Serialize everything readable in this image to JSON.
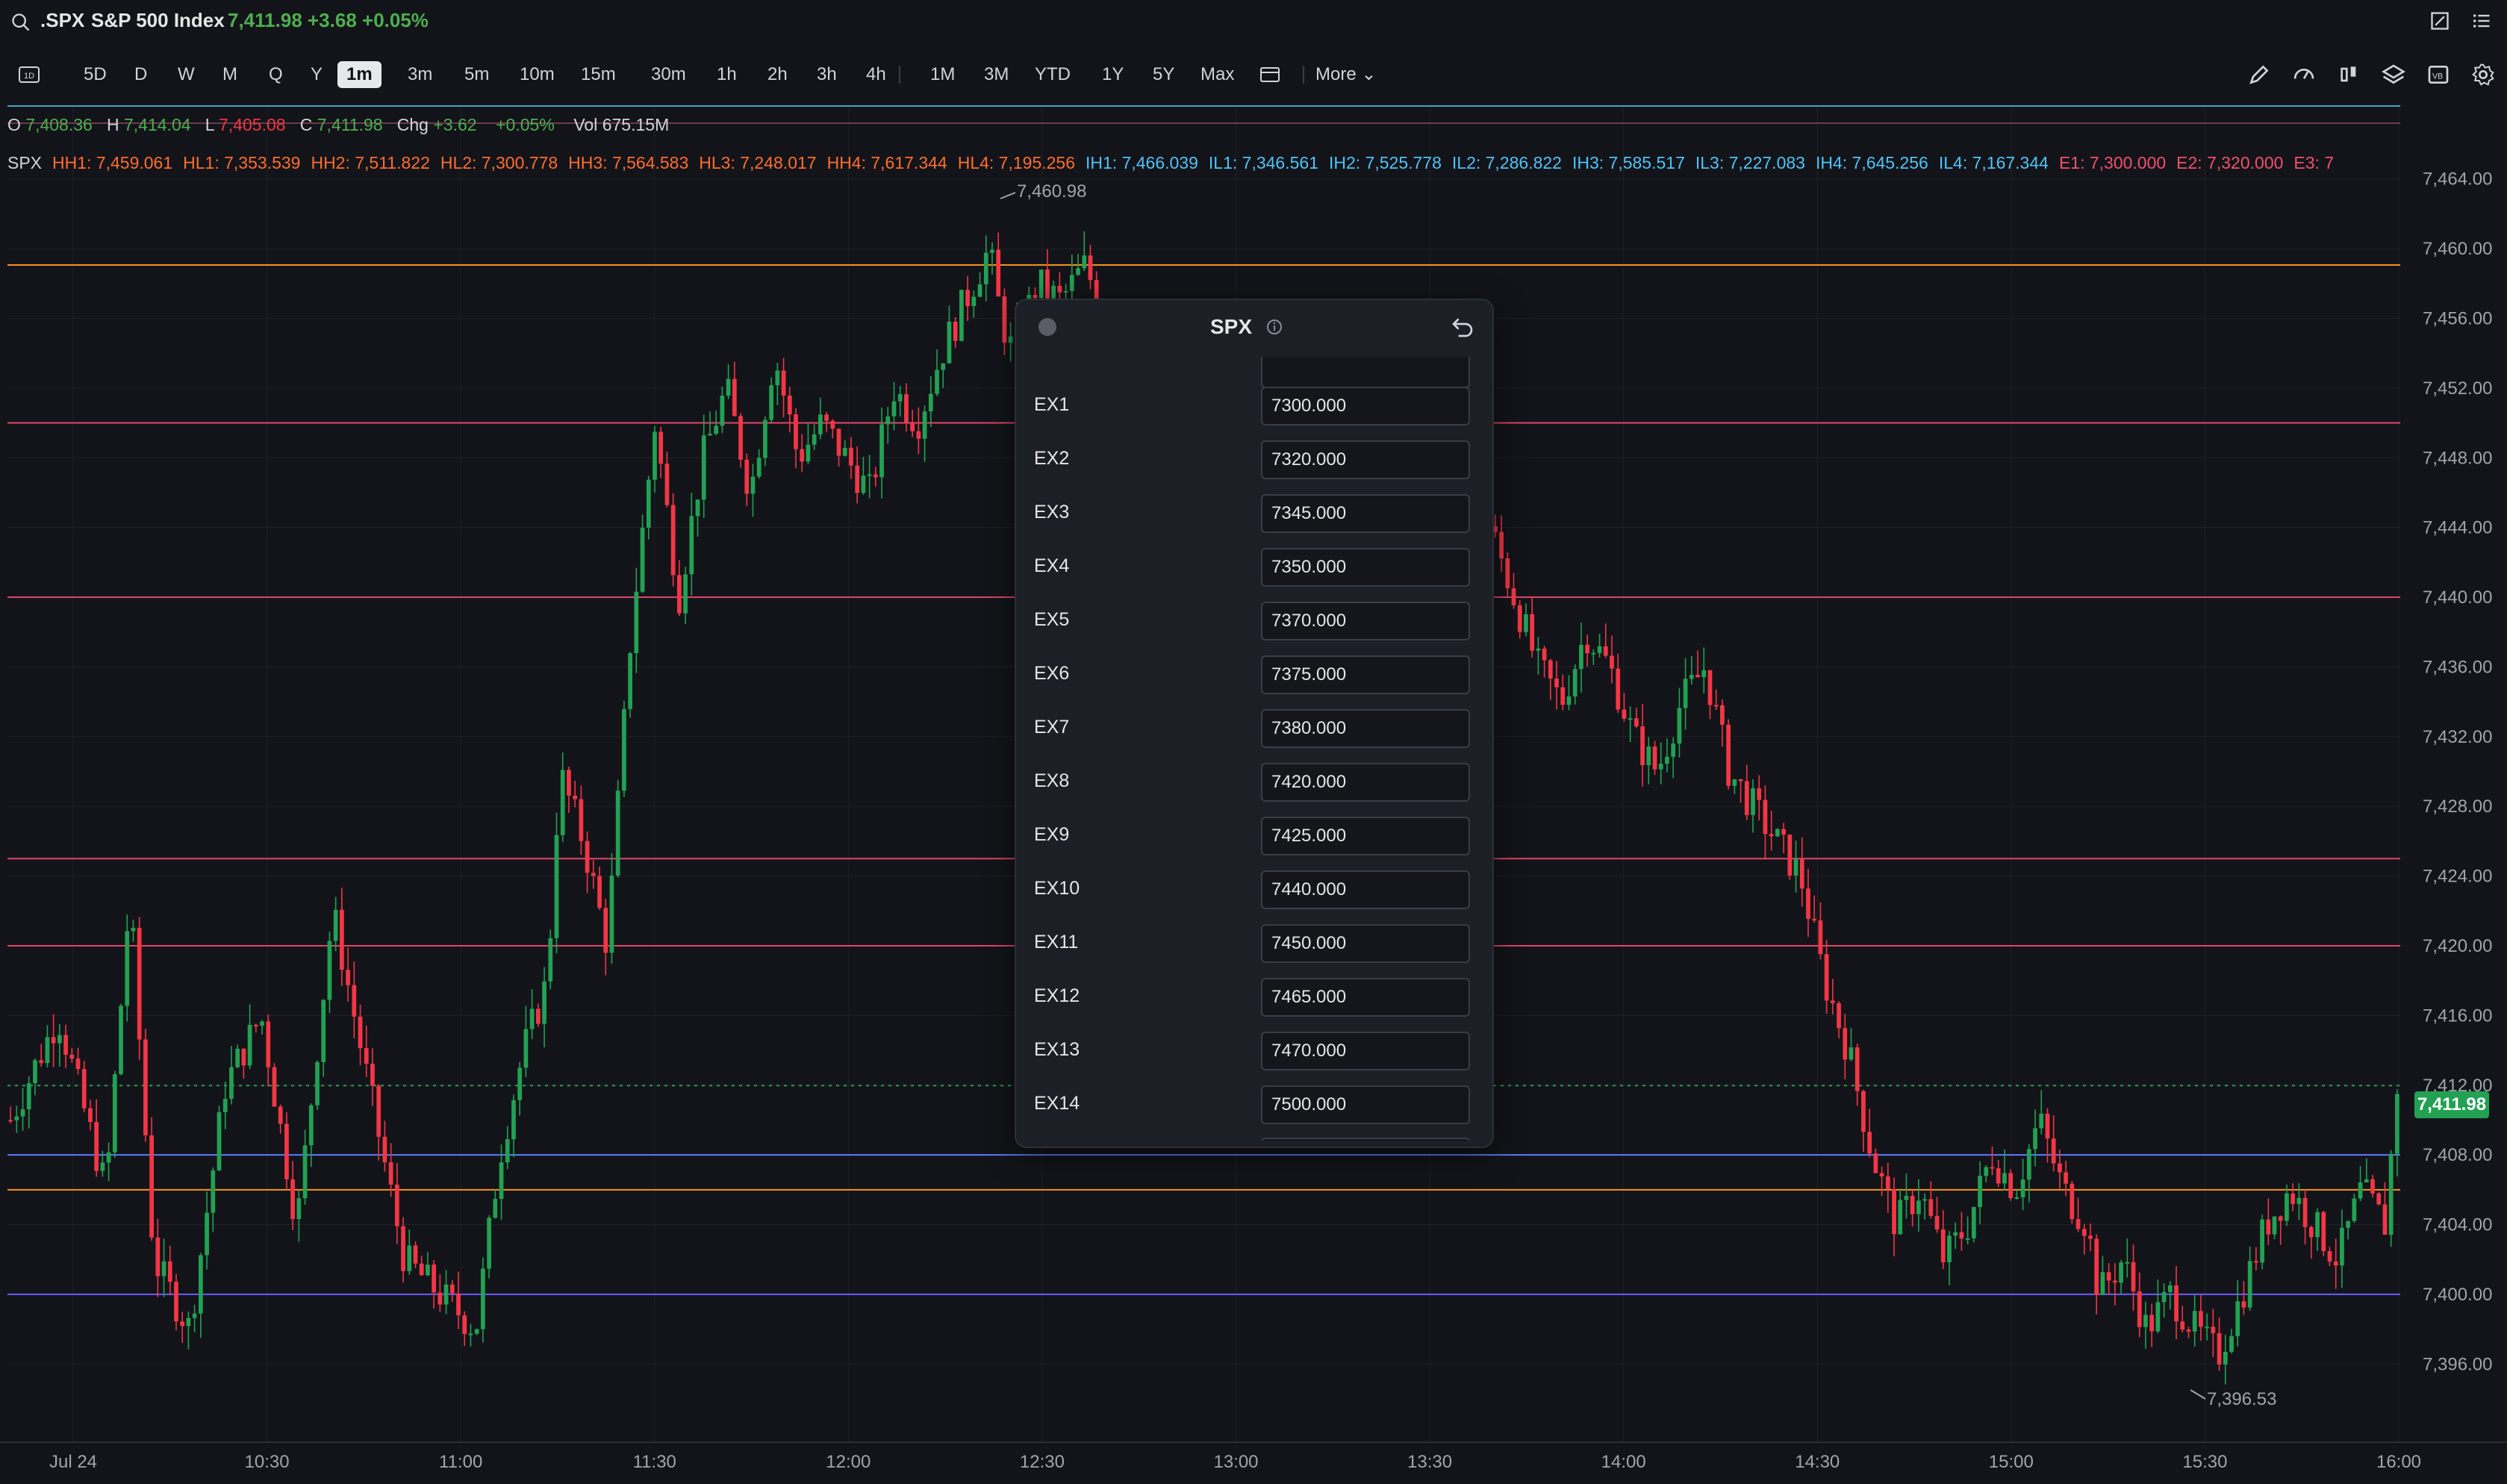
{
  "header": {
    "symbol": ".SPX",
    "name": "S&P 500 Index",
    "price_line": "7,411.98 +3.68 +0.05%"
  },
  "toolbar": {
    "timeframes": [
      "5D",
      "D",
      "W",
      "M",
      "Q",
      "Y",
      "1m",
      "3m",
      "5m",
      "10m",
      "15m",
      "30m",
      "1h",
      "2h",
      "3h",
      "4h",
      "1M",
      "3M",
      "YTD",
      "1Y",
      "5Y",
      "Max"
    ],
    "active": "1m",
    "more_label": "More"
  },
  "ohlc": {
    "o_label": "O",
    "o": "7,408.36",
    "h_label": "H",
    "h": "7,414.04",
    "l_label": "L",
    "l": "7,405.08",
    "c_label": "C",
    "c": "7,411.98",
    "chg_label": "Chg",
    "chg": "+3.62",
    "chg_pct": "+0.05%",
    "vol_label": "Vol",
    "vol": "675.15M"
  },
  "levels": {
    "symbol": "SPX",
    "items": [
      {
        "text": "HH1: 7,459.061",
        "color": "#ff6d2e"
      },
      {
        "text": "HL1: 7,353.539",
        "color": "#ff6d2e"
      },
      {
        "text": "HH2: 7,511.822",
        "color": "#ff6d2e"
      },
      {
        "text": "HL2: 7,300.778",
        "color": "#ff6d2e"
      },
      {
        "text": "HH3: 7,564.583",
        "color": "#ff6d2e"
      },
      {
        "text": "HL3: 7,248.017",
        "color": "#ff6d2e"
      },
      {
        "text": "HH4: 7,617.344",
        "color": "#ff6d2e"
      },
      {
        "text": "HL4: 7,195.256",
        "color": "#ff6d2e"
      },
      {
        "text": "IH1: 7,466.039",
        "color": "#4fc3f7"
      },
      {
        "text": "IL1: 7,346.561",
        "color": "#4fc3f7"
      },
      {
        "text": "IH2: 7,525.778",
        "color": "#4fc3f7"
      },
      {
        "text": "IL2: 7,286.822",
        "color": "#4fc3f7"
      },
      {
        "text": "IH3: 7,585.517",
        "color": "#4fc3f7"
      },
      {
        "text": "IL3: 7,227.083",
        "color": "#4fc3f7"
      },
      {
        "text": "IH4: 7,645.256",
        "color": "#4fc3f7"
      },
      {
        "text": "IL4: 7,167.344",
        "color": "#4fc3f7"
      },
      {
        "text": "E1: 7,300.000",
        "color": "#f0506e"
      },
      {
        "text": "E2: 7,320.000",
        "color": "#f0506e"
      },
      {
        "text": "E3: 7",
        "color": "#f0506e"
      }
    ]
  },
  "chart_data": {
    "type": "candlestick",
    "y_ticks": [
      "7,464.00",
      "7,460.00",
      "7,456.00",
      "7,452.00",
      "7,448.00",
      "7,444.00",
      "7,440.00",
      "7,436.00",
      "7,432.00",
      "7,428.00",
      "7,424.00",
      "7,420.00",
      "7,416.00",
      "7,412.00",
      "7,408.00",
      "7,404.00",
      "7,400.00",
      "7,396.00"
    ],
    "ylim": [
      7394,
      7466
    ],
    "x_ticks": [
      "Jul 24",
      "10:30",
      "11:00",
      "11:30",
      "12:00",
      "12:30",
      "13:00",
      "13:30",
      "14:00",
      "14:30",
      "15:00",
      "15:30",
      "16:00"
    ],
    "current_price": "7,411.98",
    "high_annotation": "7,460.98",
    "low_annotation": "7,396.53",
    "horizontal_levels": [
      {
        "value": 7459.06,
        "color": "#f7931a"
      },
      {
        "value": 7450.0,
        "color": "#e0446a"
      },
      {
        "value": 7440.0,
        "color": "#e0446a"
      },
      {
        "value": 7425.0,
        "color": "#e0446a"
      },
      {
        "value": 7420.0,
        "color": "#e0446a"
      },
      {
        "value": 7408.0,
        "color": "#5b7cff"
      },
      {
        "value": 7406.0,
        "color": "#f7931a"
      },
      {
        "value": 7400.0,
        "color": "#6a5bff"
      }
    ],
    "price_path": [
      [
        0,
        7410
      ],
      [
        0.02,
        7416
      ],
      [
        0.04,
        7406
      ],
      [
        0.05,
        7423
      ],
      [
        0.06,
        7402
      ],
      [
        0.075,
        7398
      ],
      [
        0.09,
        7412
      ],
      [
        0.105,
        7416
      ],
      [
        0.12,
        7404
      ],
      [
        0.135,
        7422
      ],
      [
        0.15,
        7412
      ],
      [
        0.165,
        7402
      ],
      [
        0.18,
        7400
      ],
      [
        0.195,
        7398
      ],
      [
        0.205,
        7408
      ],
      [
        0.215,
        7414
      ],
      [
        0.225,
        7418
      ],
      [
        0.23,
        7430
      ],
      [
        0.24,
        7426
      ],
      [
        0.25,
        7420
      ],
      [
        0.26,
        7438
      ],
      [
        0.27,
        7450
      ],
      [
        0.28,
        7440
      ],
      [
        0.29,
        7448
      ],
      [
        0.3,
        7452
      ],
      [
        0.31,
        7446
      ],
      [
        0.32,
        7454
      ],
      [
        0.33,
        7448
      ],
      [
        0.34,
        7450
      ],
      [
        0.35,
        7448
      ],
      [
        0.36,
        7446
      ],
      [
        0.37,
        7452
      ],
      [
        0.38,
        7450
      ],
      [
        0.39,
        7454
      ],
      [
        0.4,
        7457
      ],
      [
        0.41,
        7460
      ],
      [
        0.415,
        7456
      ],
      [
        0.42,
        7454
      ],
      [
        0.43,
        7458
      ],
      [
        0.44,
        7457
      ],
      [
        0.45,
        7459
      ],
      [
        0.46,
        7456
      ],
      [
        0.47,
        7452
      ],
      [
        0.49,
        7449
      ],
      [
        0.51,
        7446
      ],
      [
        0.53,
        7444
      ],
      [
        0.55,
        7438
      ],
      [
        0.57,
        7436
      ],
      [
        0.59,
        7442
      ],
      [
        0.61,
        7446
      ],
      [
        0.62,
        7444
      ],
      [
        0.63,
        7440
      ],
      [
        0.64,
        7436
      ],
      [
        0.65,
        7434
      ],
      [
        0.66,
        7438
      ],
      [
        0.67,
        7436
      ],
      [
        0.68,
        7432
      ],
      [
        0.69,
        7430
      ],
      [
        0.7,
        7434
      ],
      [
        0.71,
        7436
      ],
      [
        0.72,
        7430
      ],
      [
        0.73,
        7428
      ],
      [
        0.74,
        7426
      ],
      [
        0.75,
        7424
      ],
      [
        0.76,
        7418
      ],
      [
        0.77,
        7414
      ],
      [
        0.78,
        7408
      ],
      [
        0.79,
        7404
      ],
      [
        0.8,
        7406
      ],
      [
        0.81,
        7402
      ],
      [
        0.82,
        7404
      ],
      [
        0.83,
        7408
      ],
      [
        0.84,
        7406
      ],
      [
        0.85,
        7410
      ],
      [
        0.86,
        7406
      ],
      [
        0.87,
        7404
      ],
      [
        0.875,
        7400
      ],
      [
        0.885,
        7402
      ],
      [
        0.895,
        7398
      ],
      [
        0.905,
        7400
      ],
      [
        0.915,
        7398
      ],
      [
        0.925,
        7396.5
      ],
      [
        0.935,
        7400
      ],
      [
        0.945,
        7404
      ],
      [
        0.955,
        7406
      ],
      [
        0.965,
        7404
      ],
      [
        0.975,
        7402
      ],
      [
        0.985,
        7406
      ],
      [
        0.995,
        7404
      ],
      [
        1.0,
        7412
      ]
    ]
  },
  "modal": {
    "title": "SPX",
    "partial_top_value": "",
    "rows": [
      {
        "label": "EX1",
        "value": "7300.000"
      },
      {
        "label": "EX2",
        "value": "7320.000"
      },
      {
        "label": "EX3",
        "value": "7345.000"
      },
      {
        "label": "EX4",
        "value": "7350.000"
      },
      {
        "label": "EX5",
        "value": "7370.000"
      },
      {
        "label": "EX6",
        "value": "7375.000"
      },
      {
        "label": "EX7",
        "value": "7380.000"
      },
      {
        "label": "EX8",
        "value": "7420.000"
      },
      {
        "label": "EX9",
        "value": "7425.000"
      },
      {
        "label": "EX10",
        "value": "7440.000"
      },
      {
        "label": "EX11",
        "value": "7450.000"
      },
      {
        "label": "EX12",
        "value": "7465.000"
      },
      {
        "label": "EX13",
        "value": "7470.000"
      },
      {
        "label": "EX14",
        "value": "7500.000"
      }
    ]
  }
}
